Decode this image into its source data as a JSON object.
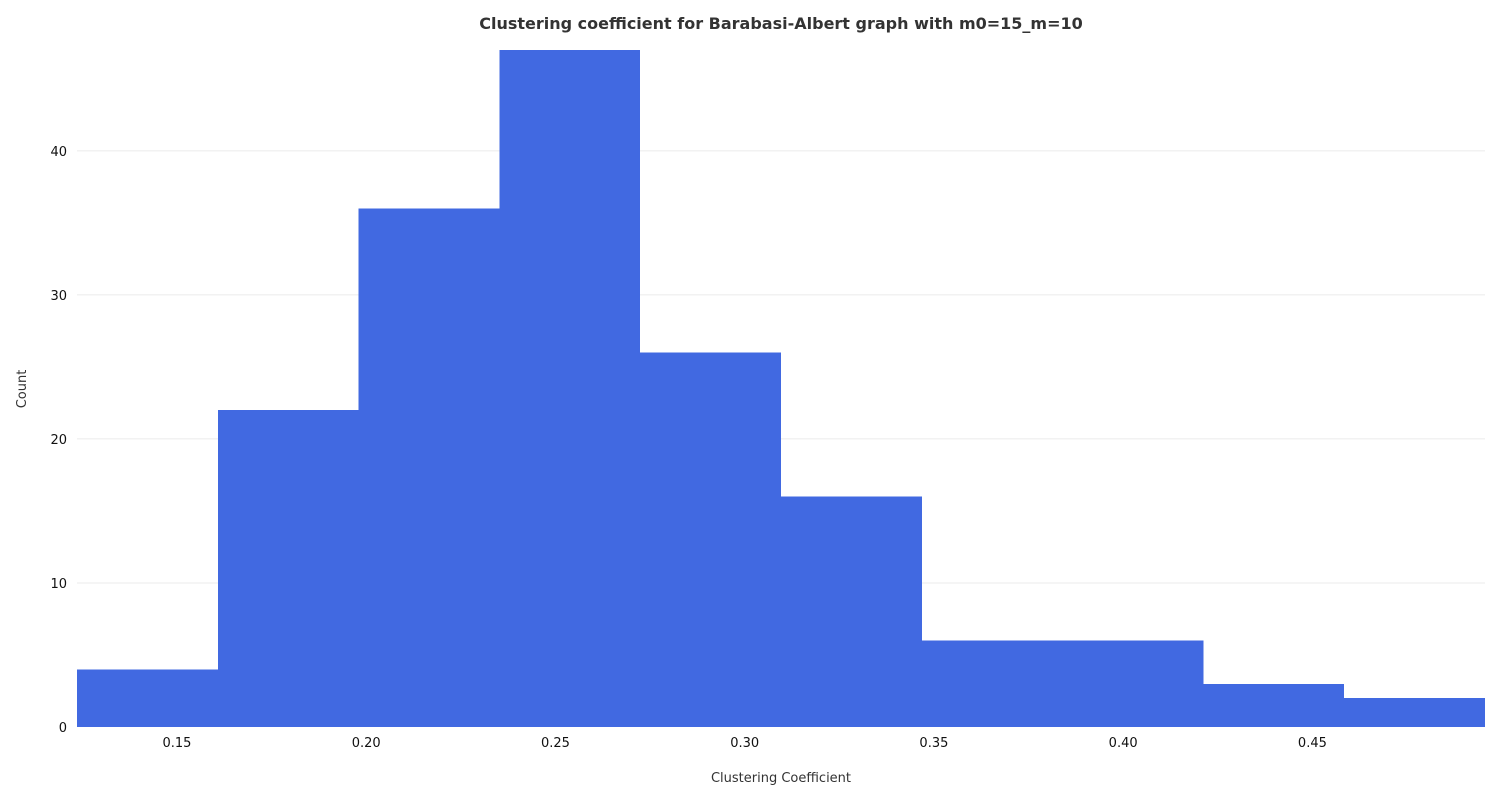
{
  "chart_data": {
    "type": "bar",
    "title": "Clustering coefficient for Barabasi-Albert graph with m0=15_m=10",
    "xlabel": "Clustering Coefficient",
    "ylabel": "Count",
    "bin_edges": [
      0.1236,
      0.1608,
      0.198,
      0.2352,
      0.2724,
      0.3096,
      0.3468,
      0.384,
      0.4212,
      0.4584,
      0.4956
    ],
    "values": [
      4,
      22,
      36,
      47,
      26,
      16,
      6,
      6,
      3,
      2
    ],
    "xlim": [
      0.1236,
      0.4956
    ],
    "ylim": [
      0,
      47
    ],
    "x_ticks": [
      "0.15",
      "0.20",
      "0.25",
      "0.30",
      "0.35",
      "0.40",
      "0.45"
    ],
    "x_tick_values": [
      0.15,
      0.2,
      0.25,
      0.3,
      0.35,
      0.4,
      0.45
    ],
    "y_ticks": [
      "0",
      "10",
      "20",
      "30",
      "40"
    ],
    "y_tick_values": [
      0,
      10,
      20,
      30,
      40
    ],
    "grid": true,
    "bar_color": "#4169e1"
  }
}
